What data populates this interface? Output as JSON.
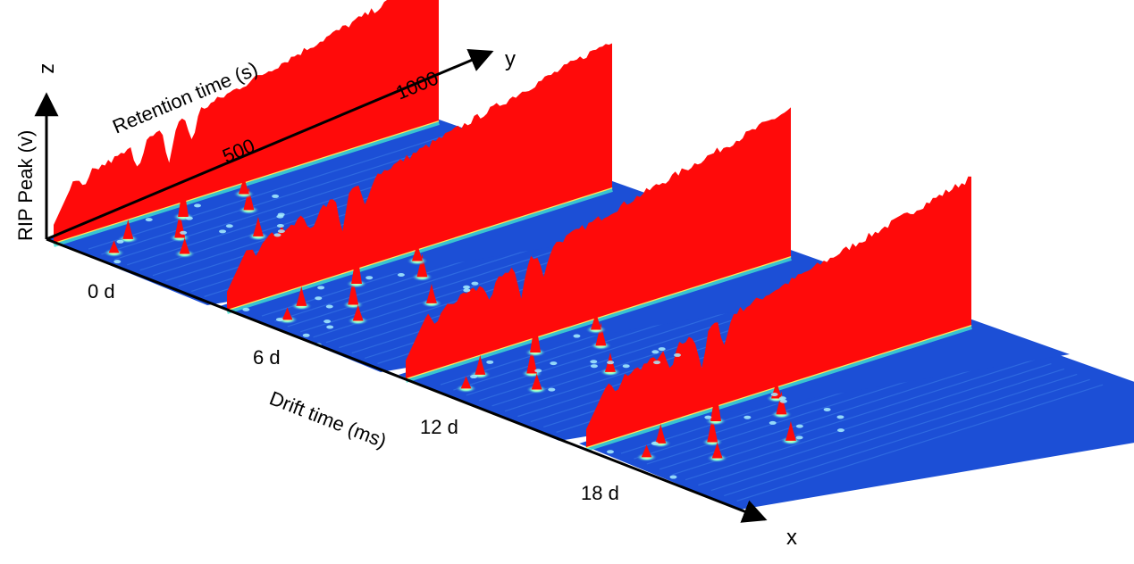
{
  "chart_data": {
    "type": "surface-3d",
    "title": "",
    "axes": {
      "x": {
        "letter": "x",
        "label": "Drift time (ms)"
      },
      "y": {
        "letter": "y",
        "label": "Retention time (s)",
        "ticks": [
          "500",
          "1000"
        ]
      },
      "z": {
        "letter": "z",
        "label": "RIP Peak (v)"
      }
    },
    "samples": [
      {
        "label": "0 d",
        "day": 0
      },
      {
        "label": "6 d",
        "day": 6
      },
      {
        "label": "12 d",
        "day": 12
      },
      {
        "label": "18 d",
        "day": 18
      }
    ],
    "colors": {
      "background_plane": "#1c4fd6",
      "rip_peak": "#ff0a0a",
      "ridge_line": "#ffe75a",
      "ridge_glow": "#40e0d0"
    }
  }
}
